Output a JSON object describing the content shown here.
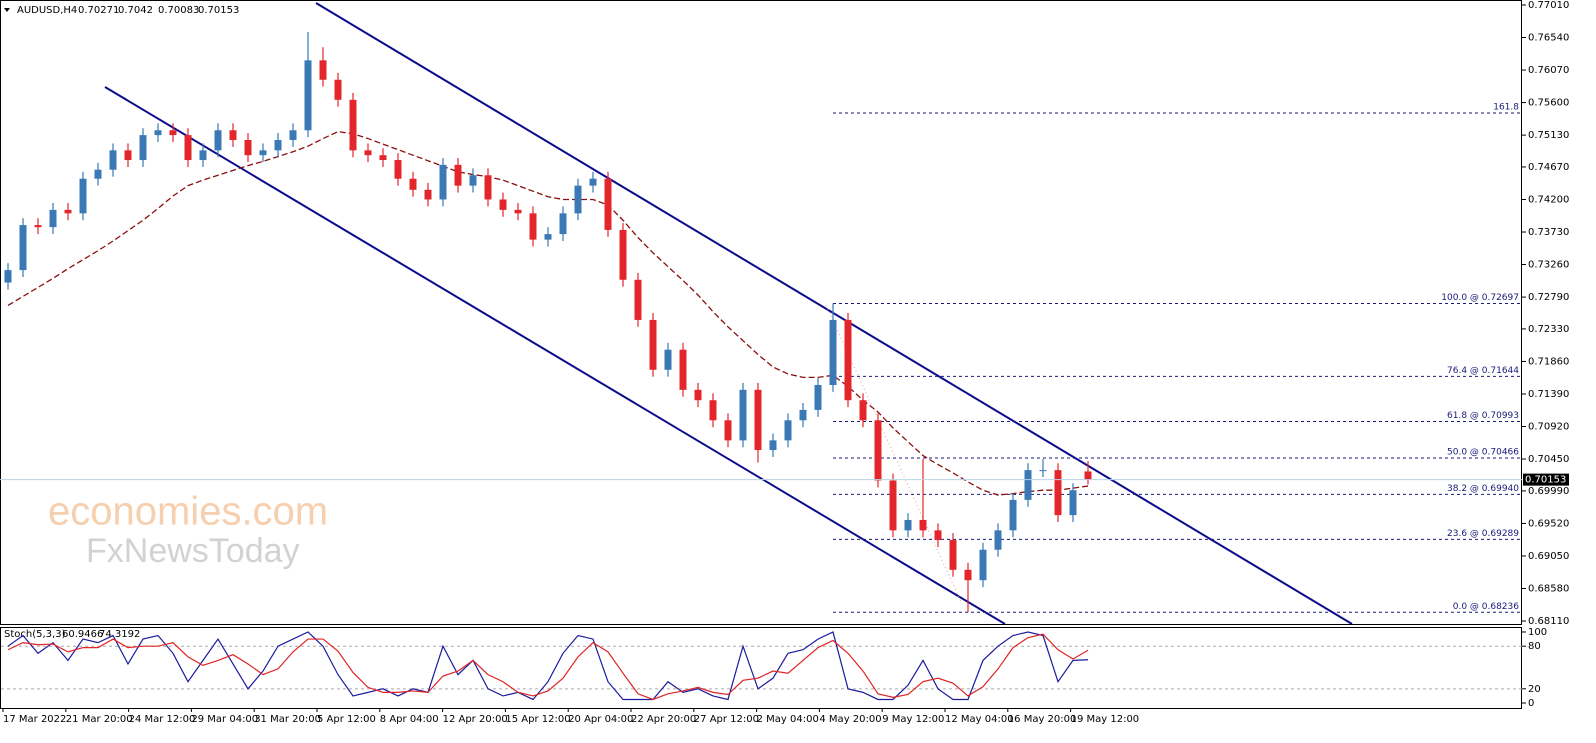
{
  "chart_data": [
    {
      "type": "candlestick",
      "title": "AUDUSD,H4",
      "open": [
        0.73,
        0.7318,
        0.7383,
        0.738,
        0.7405,
        0.74,
        0.745,
        0.7463,
        0.7491,
        0.7477,
        0.7513,
        0.752,
        0.7513,
        0.7477,
        0.7491,
        0.752,
        0.7506,
        0.7484,
        0.7491,
        0.7506,
        0.752,
        0.7621,
        0.7593,
        0.7564,
        0.7491,
        0.7484,
        0.7477,
        0.745,
        0.7434,
        0.742,
        0.747,
        0.744,
        0.7455,
        0.742,
        0.7405,
        0.74,
        0.7362,
        0.737,
        0.74,
        0.744,
        0.745,
        0.7376,
        0.7304,
        0.7246,
        0.7174,
        0.7203,
        0.7145,
        0.713,
        0.7101,
        0.7072,
        0.7145,
        0.7058,
        0.7072,
        0.7101,
        0.7116,
        0.7152,
        0.7246,
        0.713,
        0.7101,
        0.7014,
        0.6942,
        0.6957,
        0.6942,
        0.6928,
        0.6885,
        0.687,
        0.6914,
        0.6942,
        0.6986,
        0.7029,
        0.7029,
        0.6964,
        0.70271
      ],
      "high": [
        0.7328,
        0.7393,
        0.7393,
        0.7415,
        0.7415,
        0.746,
        0.7473,
        0.7501,
        0.7501,
        0.7523,
        0.753,
        0.753,
        0.7523,
        0.7501,
        0.753,
        0.753,
        0.7516,
        0.7501,
        0.7516,
        0.753,
        0.7662,
        0.764,
        0.7603,
        0.7574,
        0.7501,
        0.7494,
        0.7487,
        0.746,
        0.7444,
        0.748,
        0.748,
        0.7465,
        0.7465,
        0.743,
        0.7415,
        0.741,
        0.738,
        0.741,
        0.745,
        0.746,
        0.746,
        0.7386,
        0.7314,
        0.7256,
        0.7213,
        0.7213,
        0.7155,
        0.714,
        0.7111,
        0.7155,
        0.7155,
        0.7082,
        0.7111,
        0.7126,
        0.7162,
        0.72697,
        0.7256,
        0.714,
        0.7111,
        0.7024,
        0.6967,
        0.7045,
        0.6952,
        0.6938,
        0.6895,
        0.6924,
        0.6952,
        0.6996,
        0.7039,
        0.7045,
        0.7039,
        0.701,
        0.7042
      ],
      "low": [
        0.729,
        0.7308,
        0.737,
        0.737,
        0.739,
        0.739,
        0.744,
        0.7453,
        0.7467,
        0.7467,
        0.7503,
        0.7503,
        0.7467,
        0.7467,
        0.7481,
        0.7496,
        0.7474,
        0.7474,
        0.7481,
        0.7496,
        0.751,
        0.7583,
        0.7554,
        0.7481,
        0.7474,
        0.7467,
        0.744,
        0.7424,
        0.741,
        0.741,
        0.743,
        0.743,
        0.741,
        0.7395,
        0.739,
        0.7352,
        0.7352,
        0.736,
        0.739,
        0.743,
        0.7366,
        0.7294,
        0.7236,
        0.7164,
        0.7164,
        0.7135,
        0.712,
        0.7091,
        0.7062,
        0.7062,
        0.704,
        0.7048,
        0.7062,
        0.7091,
        0.7106,
        0.7142,
        0.712,
        0.7091,
        0.7004,
        0.6932,
        0.6932,
        0.6932,
        0.6918,
        0.6875,
        0.68236,
        0.686,
        0.6904,
        0.6932,
        0.6976,
        0.7019,
        0.6954,
        0.6954,
        0.70083
      ],
      "close": [
        0.7318,
        0.7383,
        0.738,
        0.7405,
        0.74,
        0.745,
        0.7463,
        0.7491,
        0.7477,
        0.7513,
        0.752,
        0.7513,
        0.7477,
        0.7491,
        0.752,
        0.7506,
        0.7484,
        0.7491,
        0.7506,
        0.752,
        0.7621,
        0.7593,
        0.7564,
        0.7491,
        0.7484,
        0.7477,
        0.745,
        0.7434,
        0.742,
        0.747,
        0.744,
        0.7455,
        0.742,
        0.7405,
        0.74,
        0.7362,
        0.737,
        0.74,
        0.744,
        0.745,
        0.7376,
        0.7304,
        0.7246,
        0.7174,
        0.7203,
        0.7145,
        0.713,
        0.7101,
        0.7072,
        0.7145,
        0.7058,
        0.7072,
        0.7101,
        0.7116,
        0.7152,
        0.7246,
        0.713,
        0.7101,
        0.7014,
        0.6942,
        0.6957,
        0.6942,
        0.6928,
        0.6885,
        0.687,
        0.6914,
        0.6942,
        0.6986,
        0.7029,
        0.7029,
        0.6964,
        0.7,
        0.70153
      ],
      "up_color": "#3a78b6",
      "down_color": "#e3262c",
      "ma": {
        "color": "#8b0f0f",
        "values": [
          0.7267,
          0.728,
          0.7293,
          0.7306,
          0.732,
          0.7333,
          0.7346,
          0.736,
          0.7375,
          0.739,
          0.7407,
          0.7425,
          0.744,
          0.7448,
          0.7455,
          0.7462,
          0.7469,
          0.7475,
          0.7482,
          0.7489,
          0.7497,
          0.7508,
          0.7518,
          0.7515,
          0.7508,
          0.75,
          0.7492,
          0.7484,
          0.7476,
          0.7468,
          0.746,
          0.7456,
          0.7453,
          0.7448,
          0.744,
          0.7432,
          0.7424,
          0.742,
          0.742,
          0.742,
          0.7412,
          0.739,
          0.7365,
          0.7343,
          0.7323,
          0.7303,
          0.7282,
          0.7258,
          0.7236,
          0.7216,
          0.7196,
          0.7178,
          0.7168,
          0.7163,
          0.7163,
          0.7166,
          0.715,
          0.713,
          0.7113,
          0.709,
          0.707,
          0.705,
          0.7037,
          0.7025,
          0.7012,
          0.7,
          0.6993,
          0.6995,
          0.6998,
          0.7,
          0.7,
          0.7003,
          0.7006
        ]
      },
      "ylim": [
        0.68067,
        0.77082
      ],
      "yticks": [
        {
          "value": 0.7701,
          "label": "0.77010"
        },
        {
          "value": 0.7654,
          "label": "0.76540"
        },
        {
          "value": 0.7607,
          "label": "0.76070"
        },
        {
          "value": 0.756,
          "label": "0.75600"
        },
        {
          "value": 0.7513,
          "label": "0.75130"
        },
        {
          "value": 0.7467,
          "label": "0.74670"
        },
        {
          "value": 0.742,
          "label": "0.74200"
        },
        {
          "value": 0.7373,
          "label": "0.73730"
        },
        {
          "value": 0.7326,
          "label": "0.73260"
        },
        {
          "value": 0.7279,
          "label": "0.72790"
        },
        {
          "value": 0.7233,
          "label": "0.72330"
        },
        {
          "value": 0.7186,
          "label": "0.71860"
        },
        {
          "value": 0.7139,
          "label": "0.71390"
        },
        {
          "value": 0.7092,
          "label": "0.70920"
        },
        {
          "value": 0.7045,
          "label": "0.70450"
        },
        {
          "value": 0.6999,
          "label": "0.69990"
        },
        {
          "value": 0.6952,
          "label": "0.69520"
        },
        {
          "value": 0.6905,
          "label": "0.69050"
        },
        {
          "value": 0.6858,
          "label": "0.68580"
        },
        {
          "value": 0.6811,
          "label": "0.68110"
        }
      ],
      "fib_levels": [
        {
          "value": 0.7545,
          "label": "161.8"
        },
        {
          "value": 0.72697,
          "label": "100.0 @ 0.72697"
        },
        {
          "value": 0.71644,
          "label": "76.4 @ 0.71644"
        },
        {
          "value": 0.70993,
          "label": "61.8 @ 0.70993"
        },
        {
          "value": 0.70466,
          "label": "50.0 @ 0.70466"
        },
        {
          "value": 0.6994,
          "label": "38.2 @ 0.69940"
        },
        {
          "value": 0.69289,
          "label": "23.6 @ 0.69289"
        },
        {
          "value": 0.68236,
          "label": "0.0 @ 0.68236"
        }
      ],
      "watermark": [
        "economies.com",
        "FxNewsToday"
      ]
    },
    {
      "type": "line",
      "title": "Stoch(5,3,3)",
      "series": [
        {
          "color": "#1c1ca0",
          "values": [
            80,
            95,
            70,
            85,
            60,
            90,
            85,
            95,
            55,
            90,
            95,
            70,
            30,
            60,
            90,
            55,
            20,
            45,
            80,
            90,
            100,
            80,
            40,
            10,
            15,
            20,
            10,
            20,
            15,
            80,
            40,
            60,
            20,
            10,
            15,
            5,
            30,
            70,
            95,
            90,
            30,
            5,
            5,
            5,
            30,
            15,
            20,
            10,
            5,
            80,
            20,
            35,
            70,
            75,
            90,
            100,
            20,
            15,
            5,
            5,
            25,
            60,
            20,
            5,
            5,
            60,
            80,
            95,
            100,
            95,
            30,
            60,
            60.9466
          ]
        },
        {
          "color": "#e02424",
          "values": [
            75,
            85,
            82,
            83,
            72,
            78,
            78,
            90,
            78,
            80,
            80,
            85,
            65,
            53,
            60,
            68,
            55,
            40,
            48,
            72,
            90,
            90,
            73,
            43,
            22,
            15,
            15,
            17,
            15,
            38,
            45,
            60,
            40,
            30,
            15,
            10,
            17,
            35,
            65,
            85,
            72,
            42,
            13,
            5,
            13,
            17,
            22,
            15,
            12,
            32,
            35,
            45,
            42,
            60,
            78,
            88,
            70,
            45,
            13,
            8,
            12,
            30,
            35,
            28,
            10,
            23,
            48,
            78,
            92,
            97,
            75,
            62,
            74.3192
          ]
        }
      ],
      "ylim": [
        -7,
        105.6
      ],
      "yticks": [
        0,
        20,
        80,
        100
      ],
      "levels": [
        20,
        80
      ],
      "x_labels": [
        "17 Mar 2022",
        "21 Mar 20:00",
        "24 Mar 12:00",
        "29 Mar 04:00",
        "31 Mar 20:00",
        "5 Apr 12:00",
        "8 Apr 04:00",
        "12 Apr 20:00",
        "15 Apr 12:00",
        "20 Apr 04:00",
        "22 Apr 20:00",
        "27 Apr 12:00",
        "2 May 04:00",
        "4 May 20:00",
        "9 May 12:00",
        "12 May 04:00",
        "16 May 20:00",
        "19 May 12:00"
      ]
    }
  ]
}
